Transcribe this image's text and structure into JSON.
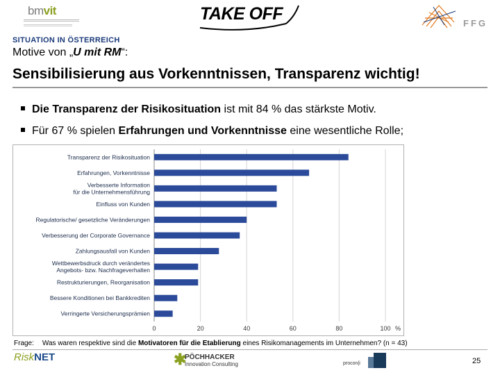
{
  "header": {
    "bmvit": {
      "main": "bm",
      "accent": "vit"
    },
    "takeoff": "TAKE OFF",
    "ffg": "FFG"
  },
  "section_label": "SITUATION IN ÖSTERREICH",
  "motive": {
    "prefix": "Motive von „",
    "italic": "U mit RM",
    "suffix": "“:"
  },
  "title": "Sensibilisierung aus Vorkenntnissen, Transparenz wichtig!",
  "bullets": [
    {
      "bold": "Die Transparenz der Risikosituation",
      "rest": " ist mit 84 % das stärkste Motiv."
    },
    {
      "pre": "Für 67 % spielen ",
      "bold": "Erfahrungen und Vorkenntnisse",
      "rest": " eine wesentliche Rolle;"
    }
  ],
  "chart_data": {
    "type": "bar",
    "orientation": "horizontal",
    "categories": [
      [
        "Transparenz der Risikosituation"
      ],
      [
        "Erfahrungen, Vorkenntnisse"
      ],
      [
        "Verbesserte Information",
        "für die Unternehmensführung"
      ],
      [
        "Einfluss von Kunden"
      ],
      [
        "Regulatorische/ gesetzliche Veränderungen"
      ],
      [
        "Verbesserung der Corporate Governance"
      ],
      [
        "Zahlungsausfall von Kunden"
      ],
      [
        "Wettbewerbsdruck durch verändertes",
        "Angebots- bzw. Nachfrageverhalten"
      ],
      [
        "Restrukturierungen, Reorganisation"
      ],
      [
        "Bessere Konditionen bei Bankkrediten"
      ],
      [
        "Verringerte Versicherungsprämien"
      ]
    ],
    "values": [
      84,
      67,
      53,
      53,
      40,
      37,
      28,
      19,
      19,
      10,
      8
    ],
    "xlim": [
      0,
      100
    ],
    "xticks": [
      0,
      20,
      40,
      60,
      80,
      100
    ],
    "xticklabels": [
      "0",
      "20",
      "40",
      "60",
      "80",
      "100"
    ],
    "unit": "%",
    "bar_color": "#2b4a9a",
    "grid": true
  },
  "footer": {
    "frage_label": "Frage:",
    "frage_text_pre": "Was waren respektive sind die ",
    "frage_text_bold": "Motivatoren für die Etablierung",
    "frage_text_post": " eines Risikomanagements im Unternehmen? (n = 43)",
    "risknet": {
      "risk": "Risk",
      "net": "NET"
    },
    "poechhacker": {
      "name": "PÖCHHACKER",
      "sub": "Innovation Consulting"
    },
    "procon": "procon|i",
    "page": "25"
  }
}
